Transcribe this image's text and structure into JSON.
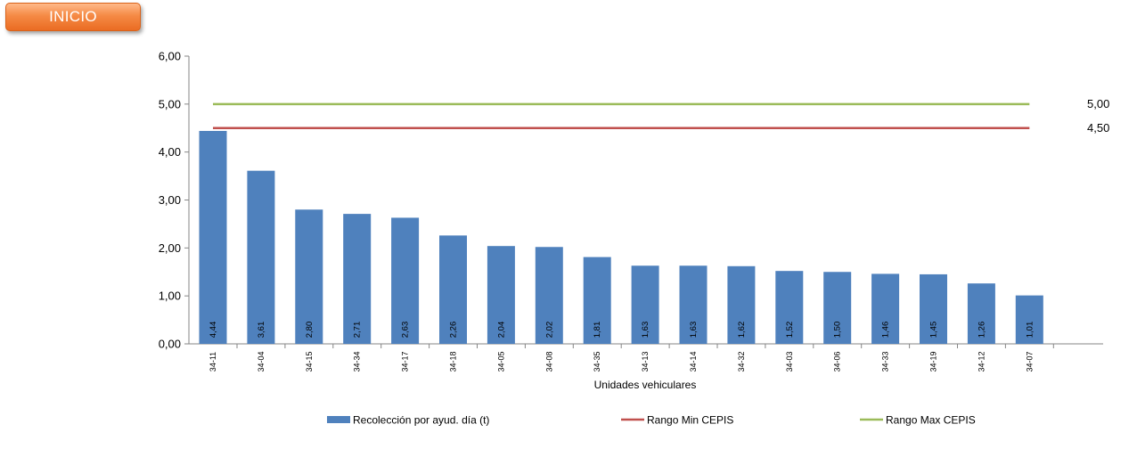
{
  "header": {
    "inicio_label": "INICIO"
  },
  "chart_data": {
    "type": "bar",
    "categories": [
      "34-11",
      "34-04",
      "34-15",
      "34-34",
      "34-17",
      "34-18",
      "34-05",
      "34-08",
      "34-35",
      "34-13",
      "34-14",
      "34-32",
      "34-03",
      "34-06",
      "34-33",
      "34-19",
      "34-12",
      "34-07"
    ],
    "series": [
      {
        "name": "Recolección por ayud. día (t)",
        "type": "bar",
        "color": "#4f81bd",
        "values": [
          4.44,
          3.61,
          2.8,
          2.71,
          2.63,
          2.26,
          2.04,
          2.02,
          1.81,
          1.63,
          1.63,
          1.62,
          1.52,
          1.5,
          1.46,
          1.45,
          1.26,
          1.01
        ],
        "labels": [
          "4,44",
          "3,61",
          "2,80",
          "2,71",
          "2,63",
          "2,26",
          "2,04",
          "2,02",
          "1,81",
          "1,63",
          "1,63",
          "1,62",
          "1,52",
          "1,50",
          "1,46",
          "1,45",
          "1,26",
          "1,01"
        ]
      },
      {
        "name": "Rango Min CEPIS",
        "type": "line",
        "color": "#c0504d",
        "value": 4.5,
        "label": "4,50"
      },
      {
        "name": "Rango Max CEPIS",
        "type": "line",
        "color": "#9bbb59",
        "value": 5.0,
        "label": "5,00"
      }
    ],
    "xlabel": "Unidades vehiculares",
    "ylabel": "",
    "ylim": [
      0,
      6
    ],
    "yticks": [
      0,
      1,
      2,
      3,
      4,
      5,
      6
    ],
    "ytick_labels": [
      "0,00",
      "1,00",
      "2,00",
      "3,00",
      "4,00",
      "5,00",
      "6,00"
    ],
    "grid": false,
    "legend_position": "bottom"
  }
}
